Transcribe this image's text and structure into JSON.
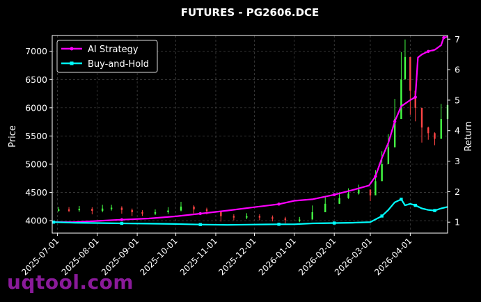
{
  "watermark": "uqtool.com",
  "colors": {
    "background": "#000000",
    "ai_strategy": "#ff00ff",
    "buy_and_hold": "#00ffff",
    "candle_up": "#44ff44",
    "candle_down": "#ff4444",
    "grid": "#555555"
  },
  "chart_data": {
    "type": "line",
    "title": "FUTURES - PG2606.DCE",
    "ylabel": "Price",
    "y2label": "Return",
    "grid": true,
    "legend_position": "top-left",
    "x_range": [
      "2025-06-27",
      "2026-04-30"
    ],
    "ylim": [
      3780,
      7280
    ],
    "y2lim": [
      0.64,
      7.12
    ],
    "x_ticks": [
      "2025-07-01",
      "2025-08-01",
      "2025-09-01",
      "2025-10-01",
      "2025-11-01",
      "2025-12-01",
      "2026-01-01",
      "2026-02-01",
      "2026-03-01",
      "2026-04-01"
    ],
    "y_ticks": [
      4000,
      4500,
      5000,
      5500,
      6000,
      6500,
      7000
    ],
    "y2_ticks": [
      1,
      2,
      3,
      4,
      5,
      6,
      7
    ],
    "series": [
      {
        "name": "AI Strategy",
        "axis": "right",
        "points": [
          [
            "2025-06-28",
            1.0
          ],
          [
            "2025-07-15",
            1.0
          ],
          [
            "2025-08-01",
            1.04
          ],
          [
            "2025-08-20",
            1.08
          ],
          [
            "2025-09-10",
            1.12
          ],
          [
            "2025-10-01",
            1.19
          ],
          [
            "2025-10-20",
            1.28
          ],
          [
            "2025-11-10",
            1.38
          ],
          [
            "2025-12-01",
            1.49
          ],
          [
            "2025-12-20",
            1.59
          ],
          [
            "2026-01-01",
            1.7
          ],
          [
            "2026-01-15",
            1.75
          ],
          [
            "2026-02-01",
            1.9
          ],
          [
            "2026-02-15",
            2.05
          ],
          [
            "2026-02-28",
            2.2
          ],
          [
            "2026-03-05",
            2.5
          ],
          [
            "2026-03-10",
            3.1
          ],
          [
            "2026-03-15",
            3.6
          ],
          [
            "2026-03-20",
            4.3
          ],
          [
            "2026-03-25",
            4.8
          ],
          [
            "2026-04-01",
            5.0
          ],
          [
            "2026-04-05",
            5.1
          ],
          [
            "2026-04-07",
            6.4
          ],
          [
            "2026-04-10",
            6.5
          ],
          [
            "2026-04-15",
            6.6
          ],
          [
            "2026-04-20",
            6.65
          ],
          [
            "2026-04-25",
            6.8
          ],
          [
            "2026-04-27",
            7.05
          ],
          [
            "2026-04-30",
            7.08
          ]
        ]
      },
      {
        "name": "Buy-and-Hold",
        "axis": "right",
        "points": [
          [
            "2025-06-28",
            1.0
          ],
          [
            "2025-07-15",
            0.98
          ],
          [
            "2025-08-01",
            0.97
          ],
          [
            "2025-08-20",
            0.96
          ],
          [
            "2025-09-10",
            0.95
          ],
          [
            "2025-10-01",
            0.94
          ],
          [
            "2025-10-20",
            0.92
          ],
          [
            "2025-11-10",
            0.91
          ],
          [
            "2025-12-01",
            0.92
          ],
          [
            "2025-12-20",
            0.93
          ],
          [
            "2026-01-01",
            0.93
          ],
          [
            "2026-01-15",
            0.96
          ],
          [
            "2026-02-01",
            0.97
          ],
          [
            "2026-02-15",
            0.98
          ],
          [
            "2026-03-01",
            1.0
          ],
          [
            "2026-03-10",
            1.2
          ],
          [
            "2026-03-15",
            1.4
          ],
          [
            "2026-03-20",
            1.65
          ],
          [
            "2026-03-25",
            1.75
          ],
          [
            "2026-03-28",
            1.55
          ],
          [
            "2026-04-01",
            1.6
          ],
          [
            "2026-04-05",
            1.55
          ],
          [
            "2026-04-10",
            1.45
          ],
          [
            "2026-04-15",
            1.4
          ],
          [
            "2026-04-20",
            1.38
          ],
          [
            "2026-04-25",
            1.45
          ],
          [
            "2026-04-30",
            1.5
          ]
        ]
      },
      {
        "name": "Price candles",
        "axis": "left",
        "points": [
          [
            "2025-07-02",
            4200
          ],
          [
            "2025-07-10",
            4195
          ],
          [
            "2025-07-18",
            4210
          ],
          [
            "2025-07-28",
            4175
          ],
          [
            "2025-08-05",
            4215
          ],
          [
            "2025-08-12",
            4230
          ],
          [
            "2025-08-20",
            4190
          ],
          [
            "2025-08-28",
            4150
          ],
          [
            "2025-09-05",
            4135
          ],
          [
            "2025-09-15",
            4150
          ],
          [
            "2025-09-25",
            4180
          ],
          [
            "2025-10-05",
            4250
          ],
          [
            "2025-10-15",
            4200
          ],
          [
            "2025-10-25",
            4170
          ],
          [
            "2025-11-05",
            4080
          ],
          [
            "2025-11-15",
            4060
          ],
          [
            "2025-11-25",
            4080
          ],
          [
            "2025-12-05",
            4060
          ],
          [
            "2025-12-15",
            4040
          ],
          [
            "2025-12-25",
            4010
          ],
          [
            "2026-01-05",
            4020
          ],
          [
            "2026-01-15",
            4150
          ],
          [
            "2026-01-25",
            4300
          ],
          [
            "2026-02-05",
            4400
          ],
          [
            "2026-02-12",
            4480
          ],
          [
            "2026-02-20",
            4550
          ],
          [
            "2026-03-01",
            4450
          ],
          [
            "2026-03-05",
            4700
          ],
          [
            "2026-03-10",
            5000
          ],
          [
            "2026-03-15",
            5300
          ],
          [
            "2026-03-20",
            5800
          ],
          [
            "2026-03-25",
            6500
          ],
          [
            "2026-03-28",
            6900
          ],
          [
            "2026-04-01",
            6300
          ],
          [
            "2026-04-05",
            6000
          ],
          [
            "2026-04-10",
            5650
          ],
          [
            "2026-04-15",
            5550
          ],
          [
            "2026-04-20",
            5450
          ],
          [
            "2026-04-25",
            5800
          ],
          [
            "2026-04-30",
            6050
          ]
        ]
      }
    ]
  }
}
